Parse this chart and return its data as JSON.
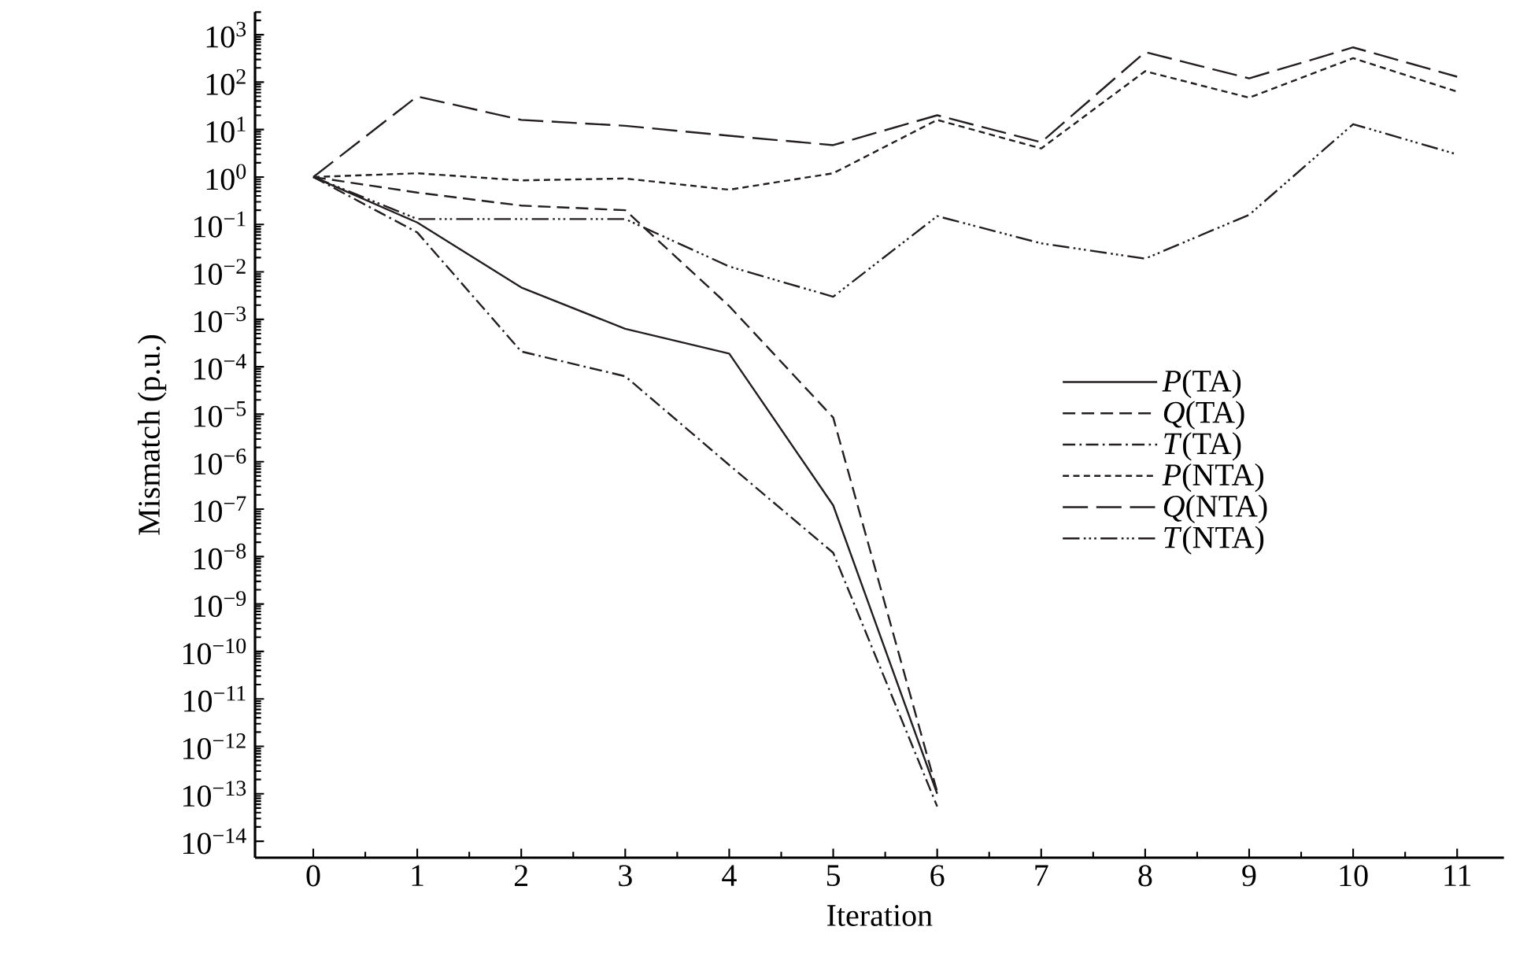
{
  "chart_data": {
    "type": "line",
    "xlabel": "Iteration",
    "ylabel": "Mismatch  (p.u.)",
    "log": "y",
    "x": [
      0,
      1,
      2,
      3,
      4,
      5,
      6,
      7,
      8,
      9,
      10,
      11
    ],
    "series": [
      {
        "name": "*P*(TA)",
        "color": "#231f20",
        "line_style": "solid",
        "values": [
          1,
          0.11,
          0.0047,
          0.00063,
          0.00019,
          1.2e-07,
          1e-13,
          null,
          null,
          null,
          null,
          null
        ]
      },
      {
        "name": "*Q*(TA)",
        "color": "#231f20",
        "line_style": "dashed",
        "values": [
          1,
          0.47,
          0.25,
          0.2,
          0.0019,
          8.5e-06,
          1.1e-13,
          null,
          null,
          null,
          null,
          null
        ]
      },
      {
        "name": "*T*(TA)",
        "color": "#231f20",
        "line_style": "dashdot",
        "values": [
          1,
          0.068,
          0.00021,
          6.3e-05,
          8.5e-07,
          1.2e-08,
          5.4e-14,
          null,
          null,
          null,
          null,
          null
        ]
      },
      {
        "name": "*P*(NTA)",
        "color": "#231f20",
        "line_style": "densely dashed",
        "values": [
          1,
          1.2,
          0.85,
          0.93,
          0.54,
          1.2,
          16,
          4,
          170,
          47,
          320,
          63
        ]
      },
      {
        "name": "*Q*(NTA)",
        "color": "#231f20",
        "line_style": "loosely dashed",
        "values": [
          1,
          50,
          16,
          12,
          7.4,
          4.7,
          20,
          5.4,
          430,
          120,
          540,
          130
        ]
      },
      {
        "name": "*T*(NTA)",
        "color": "#231f20",
        "line_style": "dashdotdot",
        "values": [
          1,
          0.13,
          0.13,
          0.13,
          0.013,
          0.003,
          0.15,
          0.04,
          0.019,
          0.16,
          13,
          3
        ]
      }
    ],
    "xlim": [
      -0.56,
      11.45
    ],
    "ylim": [
      4.5e-15,
      3000
    ],
    "xticks": [
      0,
      1,
      2,
      3,
      4,
      5,
      6,
      7,
      8,
      9,
      10,
      11
    ],
    "yticks": [
      {
        "value": 1000,
        "label": "10$^{3}$"
      },
      {
        "value": 100,
        "label": "10$^{2}$"
      },
      {
        "value": 10,
        "label": "10$^{1}$"
      },
      {
        "value": 1,
        "label": "10$^{0}$"
      },
      {
        "value": 0.1,
        "label": "10$^{−1}$"
      },
      {
        "value": 0.01,
        "label": "10$^{−2}$"
      },
      {
        "value": 0.001,
        "label": "10$^{−3}$"
      },
      {
        "value": 0.0001,
        "label": "10$^{−4}$"
      },
      {
        "value": 1e-05,
        "label": "10$^{−5}$"
      },
      {
        "value": 1e-06,
        "label": "10$^{−6}$"
      },
      {
        "value": 1e-07,
        "label": "10$^{−7}$"
      },
      {
        "value": 1e-08,
        "label": "10$^{−8}$"
      },
      {
        "value": 1e-09,
        "label": "10$^{−9}$"
      },
      {
        "value": 1e-10,
        "label": "10$^{−10}$"
      },
      {
        "value": 1e-11,
        "label": "10$^{−11}$"
      },
      {
        "value": 1e-12,
        "label": "10$^{−12}$"
      },
      {
        "value": 1e-13,
        "label": "10$^{−13}$"
      },
      {
        "value": 1e-14,
        "label": "10$^{−14}$"
      }
    ],
    "grid": false,
    "legend": "right",
    "marker": "none"
  }
}
